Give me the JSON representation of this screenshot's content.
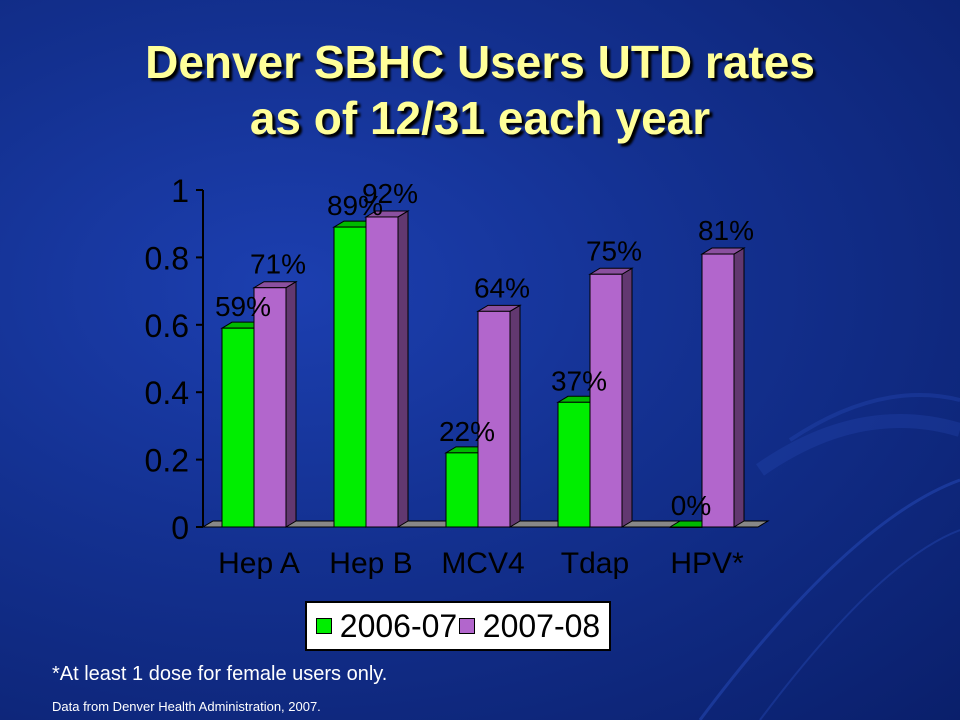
{
  "slide": {
    "title_line1": "Denver SBHC Users UTD rates",
    "title_line2": "as of 12/31 each year",
    "footnote": "*At least 1 dose for female users only.",
    "source": "Data from Denver Health Administration, 2007."
  },
  "colors": {
    "background": "#13308f",
    "title": "#ffff99",
    "series1": "#00ee00",
    "series2": "#b266cc",
    "text": "#000000"
  },
  "chart_data": {
    "type": "bar",
    "title": "",
    "xlabel": "",
    "ylabel": "",
    "ylim": [
      0,
      1
    ],
    "yticks": [
      "0",
      "0.2",
      "0.4",
      "0.6",
      "0.8",
      "1"
    ],
    "categories": [
      "Hep A",
      "Hep B",
      "MCV4",
      "Tdap",
      "HPV*"
    ],
    "series": [
      {
        "name": "2006-07",
        "values": [
          0.59,
          0.89,
          0.22,
          0.37,
          0.0
        ],
        "labels": [
          "59%",
          "89%",
          "22%",
          "37%",
          "0%"
        ]
      },
      {
        "name": "2007-08",
        "values": [
          0.71,
          0.92,
          0.64,
          0.75,
          0.81
        ],
        "labels": [
          "71%",
          "92%",
          "64%",
          "75%",
          "81%"
        ]
      }
    ],
    "legend": "bottom",
    "style": "3d-clustered",
    "grid": false
  }
}
